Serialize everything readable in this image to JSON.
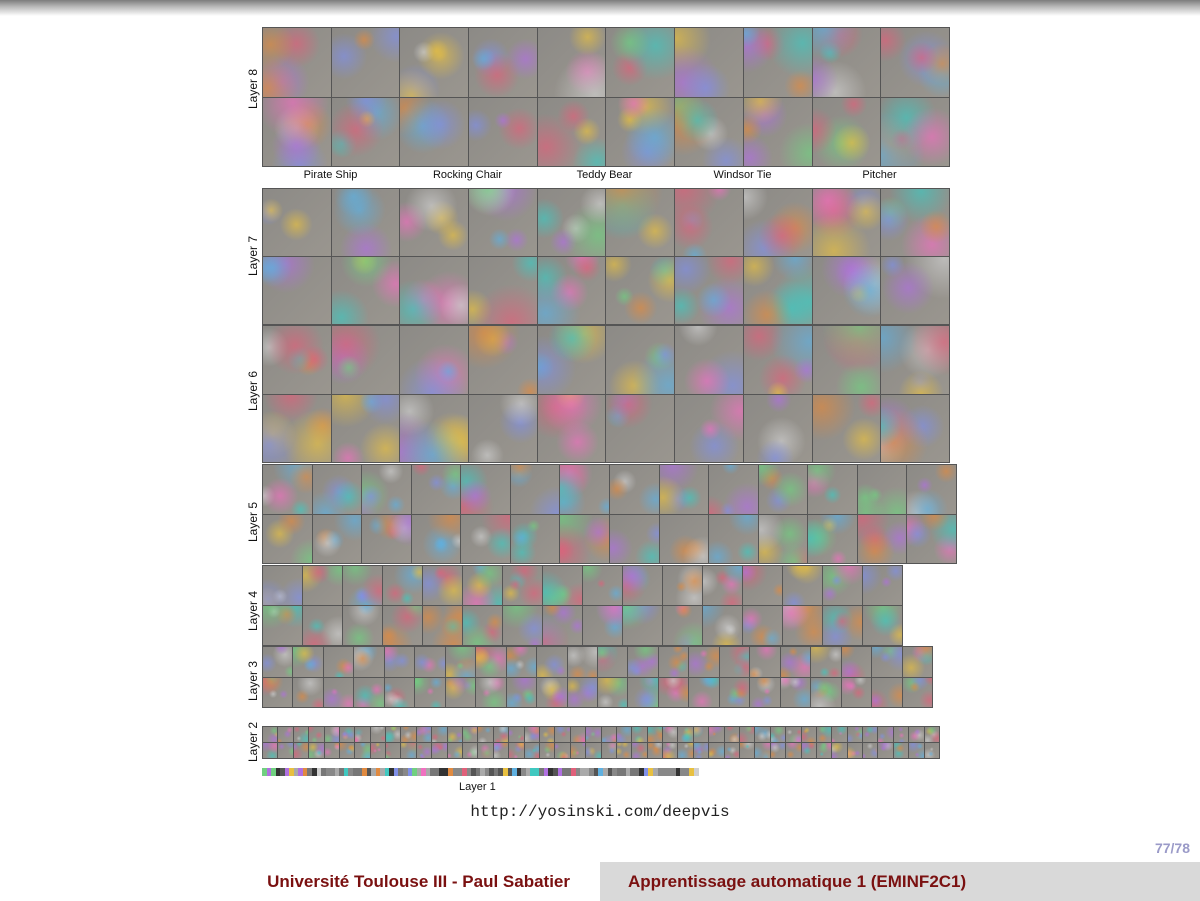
{
  "figure": {
    "layers": [
      "Layer 8",
      "Layer 7",
      "Layer 6",
      "Layer 5",
      "Layer 4",
      "Layer 3",
      "Layer 2",
      "Layer 1"
    ],
    "class_labels": [
      "Pirate Ship",
      "Rocking Chair",
      "Teddy Bear",
      "Windsor Tie",
      "Pitcher"
    ]
  },
  "caption": "http://yosinski.com/deepvis",
  "page_number": "77/78",
  "footer": {
    "left": "Université Toulouse III - Paul Sabatier",
    "right": "Apprentissage automatique 1 (EMINF2C1)"
  }
}
